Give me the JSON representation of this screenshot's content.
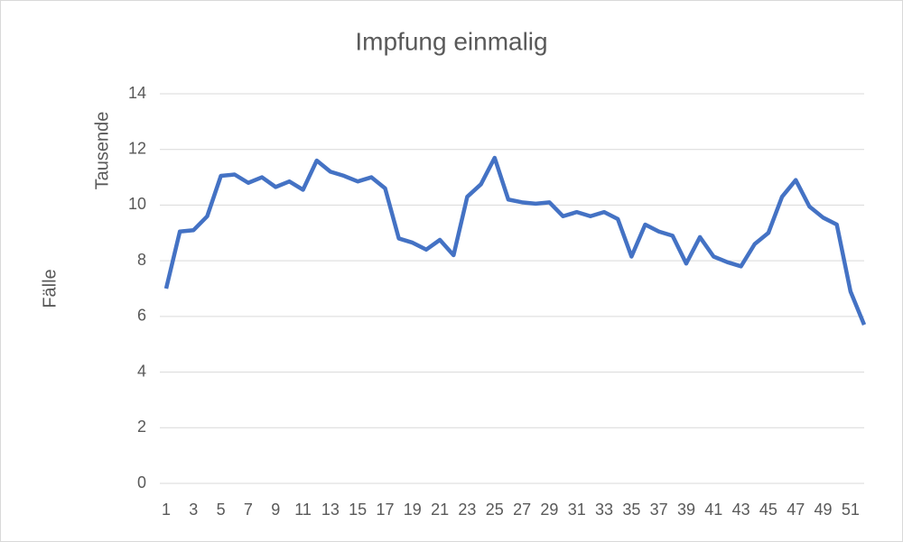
{
  "chart_data": {
    "type": "line",
    "title": "Impfung einmalig",
    "ylabel": "Fälle",
    "display_units": "Tausende",
    "x": [
      1,
      2,
      3,
      4,
      5,
      6,
      7,
      8,
      9,
      10,
      11,
      12,
      13,
      14,
      15,
      16,
      17,
      18,
      19,
      20,
      21,
      22,
      23,
      24,
      25,
      26,
      27,
      28,
      29,
      30,
      31,
      32,
      33,
      34,
      35,
      36,
      37,
      38,
      39,
      40,
      41,
      42,
      43,
      44,
      45,
      46,
      47,
      48,
      49,
      50,
      51,
      52
    ],
    "series": [
      {
        "name": "Impfung einmalig",
        "color": "#4472c4",
        "values": [
          7.0,
          9.05,
          9.1,
          9.6,
          11.05,
          11.1,
          10.8,
          11.0,
          10.65,
          10.85,
          10.55,
          11.6,
          11.2,
          11.05,
          10.85,
          11.0,
          10.6,
          8.8,
          8.65,
          8.4,
          8.75,
          8.2,
          10.3,
          10.75,
          11.7,
          10.2,
          10.1,
          10.05,
          10.1,
          9.6,
          9.75,
          9.6,
          9.75,
          9.5,
          8.15,
          9.3,
          9.05,
          8.9,
          7.9,
          8.85,
          8.15,
          7.95,
          7.8,
          8.6,
          9.0,
          10.3,
          10.9,
          9.95,
          9.55,
          9.3,
          6.9,
          5.7
        ]
      }
    ],
    "xlim": [
      1,
      52
    ],
    "xticks": [
      1,
      3,
      5,
      7,
      9,
      11,
      13,
      15,
      17,
      19,
      21,
      23,
      25,
      27,
      29,
      31,
      33,
      35,
      37,
      39,
      41,
      43,
      45,
      47,
      49,
      51
    ],
    "ylim": [
      0,
      14
    ],
    "yticks": [
      0,
      2,
      4,
      6,
      8,
      10,
      12,
      14
    ],
    "grid": true
  }
}
